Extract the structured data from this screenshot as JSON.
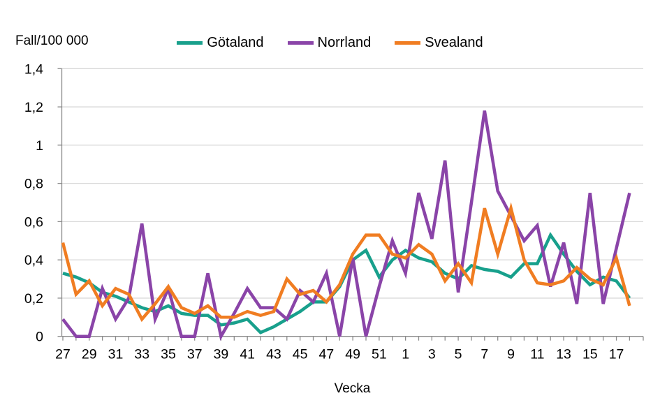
{
  "chart_data": {
    "type": "line",
    "ylabel": "Fall/100 000",
    "xlabel": "Vecka",
    "ylim": [
      0,
      1.4
    ],
    "grid": "horizontal",
    "legend_position": "top",
    "y_ticks": [
      "0",
      "0,2",
      "0,4",
      "0,6",
      "0,8",
      "1",
      "1,2",
      "1,4"
    ],
    "y_tick_values": [
      0,
      0.2,
      0.4,
      0.6,
      0.8,
      1.0,
      1.2,
      1.4
    ],
    "categories": [
      "27",
      "28",
      "29",
      "30",
      "31",
      "32",
      "33",
      "34",
      "35",
      "36",
      "37",
      "38",
      "39",
      "40",
      "41",
      "42",
      "43",
      "44",
      "45",
      "46",
      "47",
      "48",
      "49",
      "50",
      "51",
      "52",
      "1",
      "2",
      "3",
      "4",
      "5",
      "6",
      "7",
      "8",
      "9",
      "10",
      "11",
      "12",
      "13",
      "14",
      "15",
      "16",
      "17",
      "18"
    ],
    "x_label_every": 2,
    "series": [
      {
        "name": "Götaland",
        "color": "#18a08c",
        "values": [
          0.33,
          0.31,
          0.28,
          0.23,
          0.21,
          0.18,
          0.15,
          0.13,
          0.16,
          0.12,
          0.11,
          0.11,
          0.06,
          0.07,
          0.09,
          0.02,
          0.05,
          0.09,
          0.13,
          0.18,
          0.18,
          0.26,
          0.4,
          0.45,
          0.31,
          0.4,
          0.45,
          0.41,
          0.39,
          0.33,
          0.3,
          0.37,
          0.35,
          0.34,
          0.31,
          0.38,
          0.38,
          0.53,
          0.43,
          0.34,
          0.27,
          0.31,
          0.29,
          0.2
        ]
      },
      {
        "name": "Norrland",
        "color": "#8a44a8",
        "values": [
          0.09,
          0.0,
          0.0,
          0.25,
          0.09,
          0.2,
          0.59,
          0.09,
          0.25,
          0.0,
          0.0,
          0.33,
          0.0,
          0.12,
          0.25,
          0.15,
          0.15,
          0.09,
          0.24,
          0.18,
          0.33,
          0.0,
          0.41,
          0.0,
          0.26,
          0.5,
          0.33,
          0.75,
          0.51,
          0.92,
          0.23,
          0.7,
          1.18,
          0.76,
          0.63,
          0.5,
          0.58,
          0.26,
          0.49,
          0.17,
          0.75,
          0.17,
          0.46,
          0.75
        ]
      },
      {
        "name": "Svealand",
        "color": "#f07d22",
        "values": [
          0.49,
          0.22,
          0.29,
          0.16,
          0.25,
          0.22,
          0.09,
          0.17,
          0.26,
          0.15,
          0.12,
          0.16,
          0.1,
          0.1,
          0.13,
          0.11,
          0.13,
          0.3,
          0.22,
          0.24,
          0.18,
          0.27,
          0.43,
          0.53,
          0.53,
          0.43,
          0.41,
          0.48,
          0.43,
          0.29,
          0.38,
          0.28,
          0.67,
          0.43,
          0.67,
          0.4,
          0.28,
          0.27,
          0.29,
          0.36,
          0.3,
          0.27,
          0.41,
          0.16
        ]
      }
    ],
    "colors": {
      "gridline": "#d9d9d9",
      "axis": "#8c8c8c",
      "text": "#000000",
      "background": "#ffffff"
    }
  }
}
